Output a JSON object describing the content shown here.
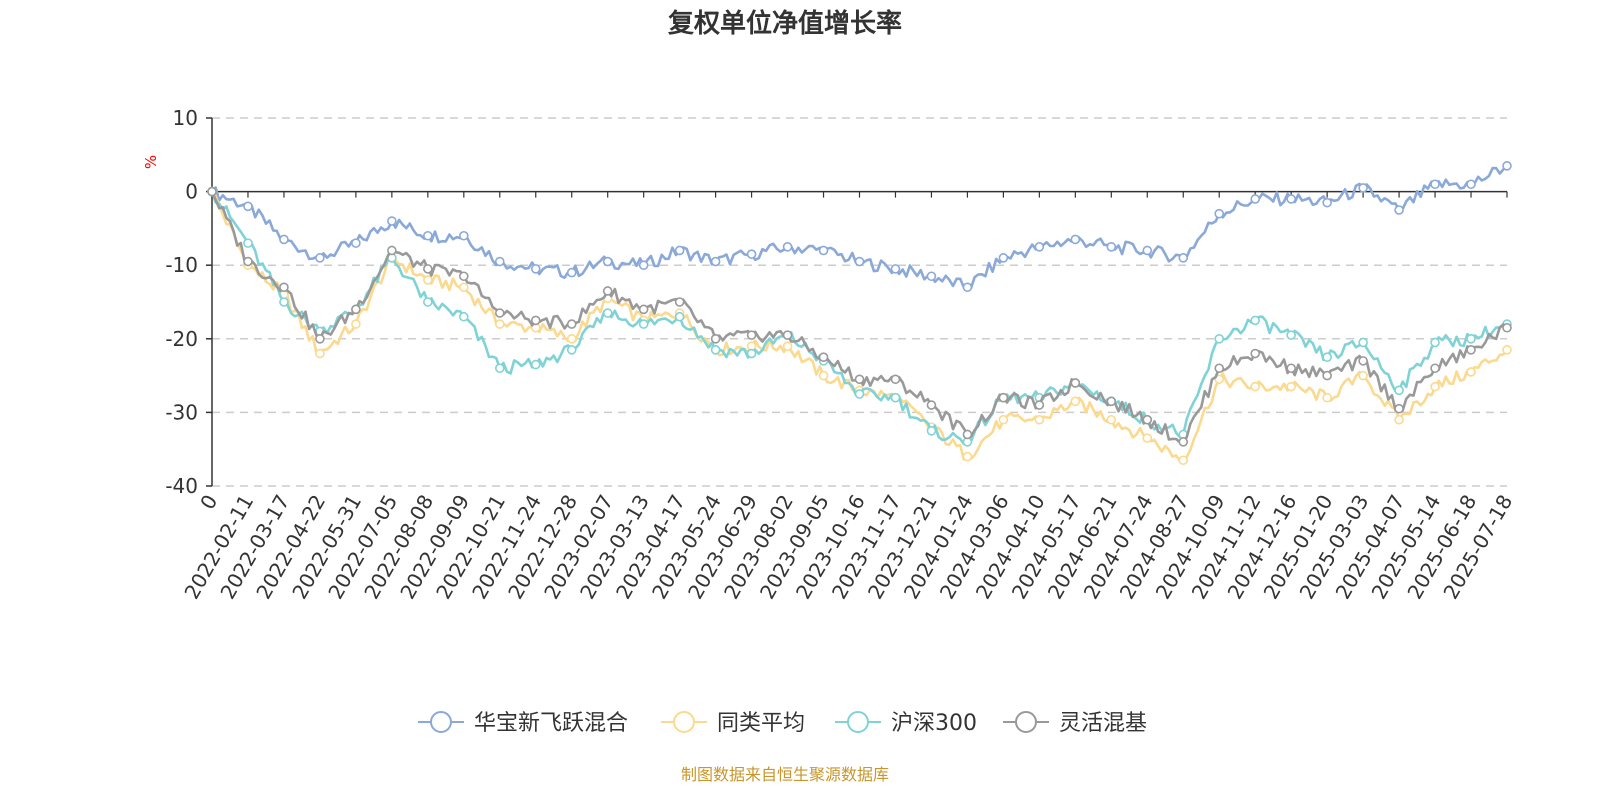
{
  "source_note": "制图数据来自恒生聚源数据库",
  "colors": {
    "fund": "#8aa9d8",
    "peer_avg": "#fbd98e",
    "hs300": "#7fd3d6",
    "flexible": "#999999",
    "axis": "#333333",
    "grid": "#cccccc",
    "unit": "#ff0000",
    "source": "#c9962a"
  },
  "chart_data": {
    "type": "line",
    "title": "复权单位净值增长率",
    "ylabel": "%",
    "xlabel": "",
    "ylim": [
      -40,
      10
    ],
    "yticks": [
      10,
      0,
      -10,
      -20,
      -30,
      -40
    ],
    "grid": true,
    "legend_position": "bottom-center",
    "x": [
      "0",
      "2022-02-11",
      "2022-03-17",
      "2022-04-22",
      "2022-05-31",
      "2022-07-05",
      "2022-08-08",
      "2022-09-09",
      "2022-10-21",
      "2022-11-24",
      "2022-12-28",
      "2023-02-07",
      "2023-03-13",
      "2023-04-17",
      "2023-05-24",
      "2023-06-29",
      "2023-08-02",
      "2023-09-05",
      "2023-10-16",
      "2023-11-17",
      "2023-12-21",
      "2024-01-24",
      "2024-03-06",
      "2024-04-10",
      "2024-05-17",
      "2024-06-21",
      "2024-07-24",
      "2024-08-27",
      "2024-10-09",
      "2024-11-12",
      "2024-12-16",
      "2025-01-20",
      "2025-03-03",
      "2025-04-07",
      "2025-05-14",
      "2025-06-18",
      "2025-07-18"
    ],
    "series": [
      {
        "name": "华宝新飞跃混合",
        "color": "#8aa9d8",
        "values": [
          0,
          -2,
          -6.5,
          -9,
          -7,
          -4,
          -6,
          -6,
          -9.5,
          -10.5,
          -11,
          -9.5,
          -10,
          -8,
          -9.5,
          -8.5,
          -7.5,
          -8,
          -9.5,
          -10.5,
          -11.5,
          -13,
          -9,
          -7.5,
          -6.5,
          -7.5,
          -8,
          -9,
          -3,
          -1,
          -1,
          -1.5,
          0.5,
          -2.5,
          1,
          1,
          3.5
        ]
      },
      {
        "name": "同类平均",
        "color": "#fbd98e",
        "values": [
          0,
          -10,
          -14,
          -22,
          -18,
          -9,
          -12,
          -13,
          -18,
          -18.5,
          -20,
          -14.5,
          -17.5,
          -16.5,
          -21.5,
          -21,
          -21,
          -25,
          -27,
          -28,
          -32,
          -36,
          -31,
          -31,
          -28.5,
          -31,
          -33.5,
          -36.5,
          -25.5,
          -26.5,
          -26.5,
          -28,
          -25,
          -31,
          -26.5,
          -24.5,
          -21.5
        ]
      },
      {
        "name": "沪深300",
        "color": "#7fd3d6",
        "values": [
          0,
          -7,
          -15,
          -19,
          -16,
          -9,
          -15,
          -17,
          -24,
          -23.5,
          -21.5,
          -16.5,
          -18,
          -17,
          -21.5,
          -22,
          -19.5,
          -23,
          -27.5,
          -28,
          -32.5,
          -34,
          -28,
          -28,
          -26,
          -28.5,
          -31,
          -33,
          -20,
          -17.5,
          -19.5,
          -22.5,
          -20.5,
          -27,
          -20.5,
          -20,
          -18
        ]
      },
      {
        "name": "灵活混基",
        "color": "#999999",
        "values": [
          0,
          -9.5,
          -13,
          -20,
          -16,
          -8,
          -10.5,
          -11.5,
          -16.5,
          -17.5,
          -18,
          -13.5,
          -16,
          -15,
          -20,
          -19.5,
          -19.5,
          -22.5,
          -25.5,
          -25.5,
          -29,
          -33,
          -28,
          -29,
          -26,
          -28.5,
          -31,
          -34,
          -24,
          -22,
          -24,
          -25,
          -23,
          -29.5,
          -24,
          -21.5,
          -18.5
        ]
      }
    ]
  }
}
